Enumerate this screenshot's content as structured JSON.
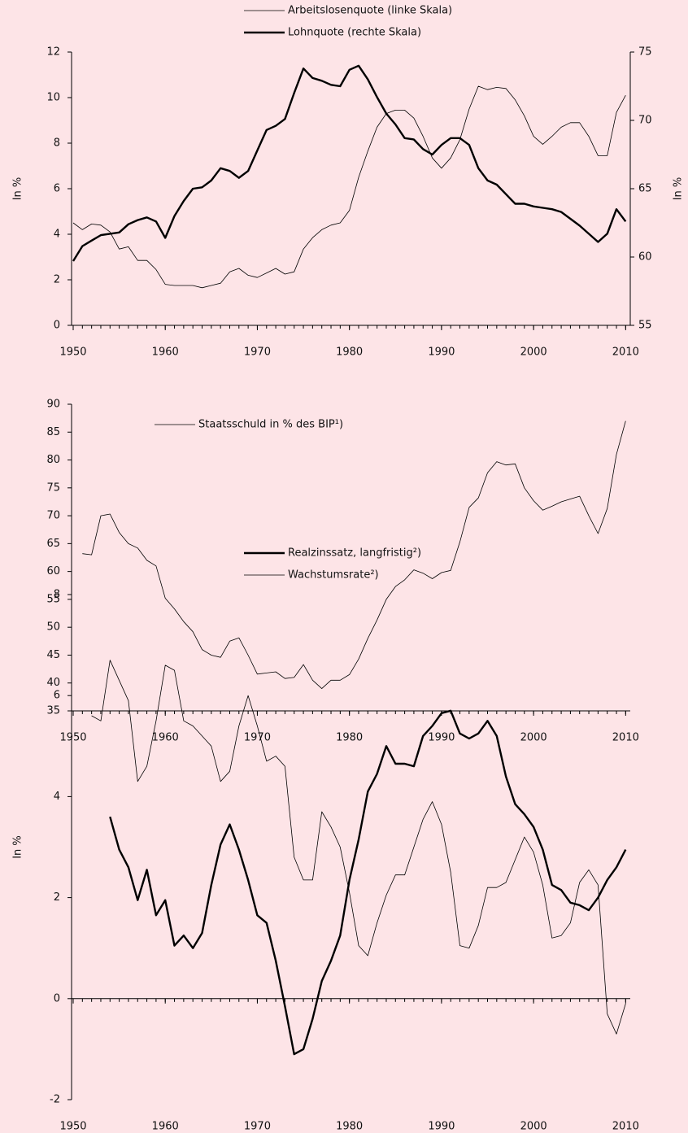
{
  "chart_data": [
    {
      "type": "line",
      "legend": "top-center",
      "ylabel": "In %",
      "y2label": "In %",
      "x": [
        1950,
        1951,
        1952,
        1953,
        1954,
        1955,
        1956,
        1957,
        1958,
        1959,
        1960,
        1961,
        1962,
        1963,
        1964,
        1965,
        1966,
        1967,
        1968,
        1969,
        1970,
        1971,
        1972,
        1973,
        1974,
        1975,
        1976,
        1977,
        1978,
        1979,
        1980,
        1981,
        1982,
        1983,
        1984,
        1985,
        1986,
        1987,
        1988,
        1989,
        1990,
        1991,
        1992,
        1993,
        1994,
        1995,
        1996,
        1997,
        1998,
        1999,
        2000,
        2001,
        2002,
        2003,
        2004,
        2005,
        2006,
        2007,
        2008,
        2009,
        2010
      ],
      "series": [
        {
          "name": "Arbeitslosenquote (linke Skala)",
          "color": "#000000",
          "linewidth": 0.8,
          "values": [
            4.5,
            4.2,
            4.45,
            4.4,
            4.1,
            3.35,
            3.45,
            2.85,
            2.85,
            2.45,
            1.8,
            1.75,
            1.75,
            1.75,
            1.65,
            1.75,
            1.85,
            2.35,
            2.5,
            2.2,
            2.1,
            2.3,
            2.5,
            2.25,
            2.35,
            3.35,
            3.85,
            4.2,
            4.4,
            4.5,
            5.05,
            6.5,
            7.65,
            8.7,
            9.3,
            9.45,
            9.45,
            9.1,
            8.3,
            7.35,
            6.9,
            7.35,
            8.15,
            9.5,
            10.5,
            10.35,
            10.45,
            10.4,
            9.9,
            9.2,
            8.3,
            7.95,
            8.3,
            8.7,
            8.9,
            8.9,
            8.3,
            7.45,
            7.45,
            9.35,
            10.1
          ]
        },
        {
          "name": "Lohnquote (rechte Skala)",
          "color": "#000000",
          "linewidth": 2.4,
          "axis": "y2",
          "values": [
            59.7,
            60.8,
            61.2,
            61.6,
            61.7,
            61.8,
            62.4,
            62.7,
            62.9,
            62.6,
            61.4,
            63.0,
            64.1,
            65.0,
            65.1,
            65.6,
            66.5,
            66.3,
            65.8,
            66.3,
            67.8,
            69.3,
            69.6,
            70.1,
            72.0,
            73.8,
            73.1,
            72.9,
            72.6,
            72.5,
            73.7,
            74.0,
            73.0,
            71.7,
            70.5,
            69.7,
            68.7,
            68.6,
            67.9,
            67.5,
            68.2,
            68.7,
            68.7,
            68.2,
            66.5,
            65.6,
            65.3,
            64.6,
            63.9,
            63.9,
            63.7,
            63.6,
            63.5,
            63.3,
            62.8,
            62.3,
            61.7,
            61.1,
            61.7,
            63.5,
            62.6
          ]
        }
      ],
      "xlim": [
        1950,
        2010.5
      ],
      "xticks": [
        1950,
        1960,
        1970,
        1980,
        1990,
        2000,
        2010
      ],
      "ylim": [
        0,
        12
      ],
      "yticks": [
        0,
        2,
        4,
        6,
        8,
        10,
        12
      ],
      "y2lim": [
        55,
        75
      ],
      "y2ticks": [
        55,
        60,
        65,
        70,
        75
      ]
    },
    {
      "type": "line",
      "legend": "upper-left",
      "x": [
        1951,
        1952,
        1953,
        1954,
        1955,
        1956,
        1957,
        1958,
        1959,
        1960,
        1961,
        1962,
        1963,
        1964,
        1965,
        1966,
        1967,
        1968,
        1969,
        1970,
        1971,
        1972,
        1973,
        1974,
        1975,
        1976,
        1977,
        1978,
        1979,
        1980,
        1981,
        1982,
        1983,
        1984,
        1985,
        1986,
        1987,
        1988,
        1989,
        1990,
        1991,
        1992,
        1993,
        1994,
        1995,
        1996,
        1997,
        1998,
        1999,
        2000,
        2001,
        2002,
        2003,
        2004,
        2005,
        2006,
        2007,
        2008,
        2009,
        2010
      ],
      "series": [
        {
          "name": "Staatsschuld in % des BIP¹)",
          "color": "#000000",
          "linewidth": 0.8,
          "values": [
            63.2,
            63.0,
            70.0,
            70.3,
            67.0,
            65.0,
            64.2,
            62.0,
            61.0,
            55.2,
            53.3,
            51.0,
            49.2,
            46.0,
            45.0,
            44.6,
            47.5,
            48.1,
            45.0,
            41.6,
            41.8,
            42.0,
            40.8,
            41.0,
            43.3,
            40.5,
            39.0,
            40.5,
            40.5,
            41.5,
            44.3,
            48.0,
            51.3,
            55.0,
            57.3,
            58.5,
            60.3,
            59.7,
            58.7,
            59.8,
            60.2,
            65.3,
            71.5,
            73.2,
            77.7,
            79.7,
            79.1,
            79.3,
            75.0,
            72.7,
            71.0,
            71.7,
            72.5,
            73.0,
            73.5,
            70.0,
            66.8,
            71.3,
            81.0,
            87.0
          ]
        }
      ],
      "xlim": [
        1950,
        2010.5
      ],
      "xticks": [
        1950,
        1960,
        1970,
        1980,
        1990,
        2000,
        2010
      ],
      "ylim": [
        35,
        90
      ],
      "yticks": [
        35,
        40,
        45,
        50,
        55,
        60,
        65,
        70,
        75,
        80,
        85,
        90
      ]
    },
    {
      "type": "line",
      "legend": "top-center",
      "ylabel": "In %",
      "x": [
        1952,
        1953,
        1954,
        1955,
        1956,
        1957,
        1958,
        1959,
        1960,
        1961,
        1962,
        1963,
        1964,
        1965,
        1966,
        1967,
        1968,
        1969,
        1970,
        1971,
        1972,
        1973,
        1974,
        1975,
        1976,
        1977,
        1978,
        1979,
        1980,
        1981,
        1982,
        1983,
        1984,
        1985,
        1986,
        1987,
        1988,
        1989,
        1990,
        1991,
        1992,
        1993,
        1994,
        1995,
        1996,
        1997,
        1998,
        1999,
        2000,
        2001,
        2002,
        2003,
        2004,
        2005,
        2006,
        2007,
        2008,
        2009,
        2010
      ],
      "series": [
        {
          "name": "Realzinssatz, langfristig²)",
          "color": "#000000",
          "linewidth": 2.4,
          "values": [
            null,
            null,
            3.6,
            2.95,
            2.6,
            1.95,
            2.55,
            1.65,
            1.95,
            1.05,
            1.25,
            1.0,
            1.3,
            2.25,
            3.05,
            3.45,
            2.95,
            2.35,
            1.65,
            1.5,
            0.75,
            -0.15,
            -1.1,
            -1.0,
            -0.4,
            0.35,
            0.75,
            1.25,
            2.35,
            3.15,
            4.1,
            4.45,
            5.0,
            4.65,
            4.65,
            4.6,
            5.2,
            5.4,
            5.65,
            5.7,
            5.25,
            5.15,
            5.25,
            5.5,
            5.2,
            4.4,
            3.85,
            3.65,
            3.4,
            2.95,
            2.25,
            2.15,
            1.9,
            1.85,
            1.75,
            2.0,
            2.35,
            2.6,
            2.95
          ]
        },
        {
          "name": "Wachstumsrate²)",
          "color": "#000000",
          "linewidth": 0.8,
          "values": [
            5.6,
            5.5,
            6.7,
            6.3,
            5.9,
            4.3,
            4.6,
            5.5,
            6.6,
            6.5,
            5.5,
            5.4,
            5.2,
            5.0,
            4.3,
            4.5,
            5.4,
            6.0,
            5.4,
            4.7,
            4.8,
            4.6,
            2.8,
            2.35,
            2.35,
            3.7,
            3.4,
            3.0,
            2.1,
            1.05,
            0.85,
            1.5,
            2.05,
            2.45,
            2.45,
            3.0,
            3.55,
            3.9,
            3.45,
            2.5,
            1.05,
            1.0,
            1.45,
            2.2,
            2.2,
            2.3,
            2.75,
            3.2,
            2.9,
            2.25,
            1.2,
            1.25,
            1.5,
            2.3,
            2.55,
            2.25,
            -0.3,
            -0.7,
            -0.1
          ]
        }
      ],
      "xlim": [
        1950,
        2010.5
      ],
      "xticks": [
        1950,
        1960,
        1970,
        1980,
        1990,
        2000,
        2010
      ],
      "ylim": [
        -2,
        8
      ],
      "yticks": [
        -2,
        0,
        2,
        4,
        6,
        8
      ]
    }
  ]
}
